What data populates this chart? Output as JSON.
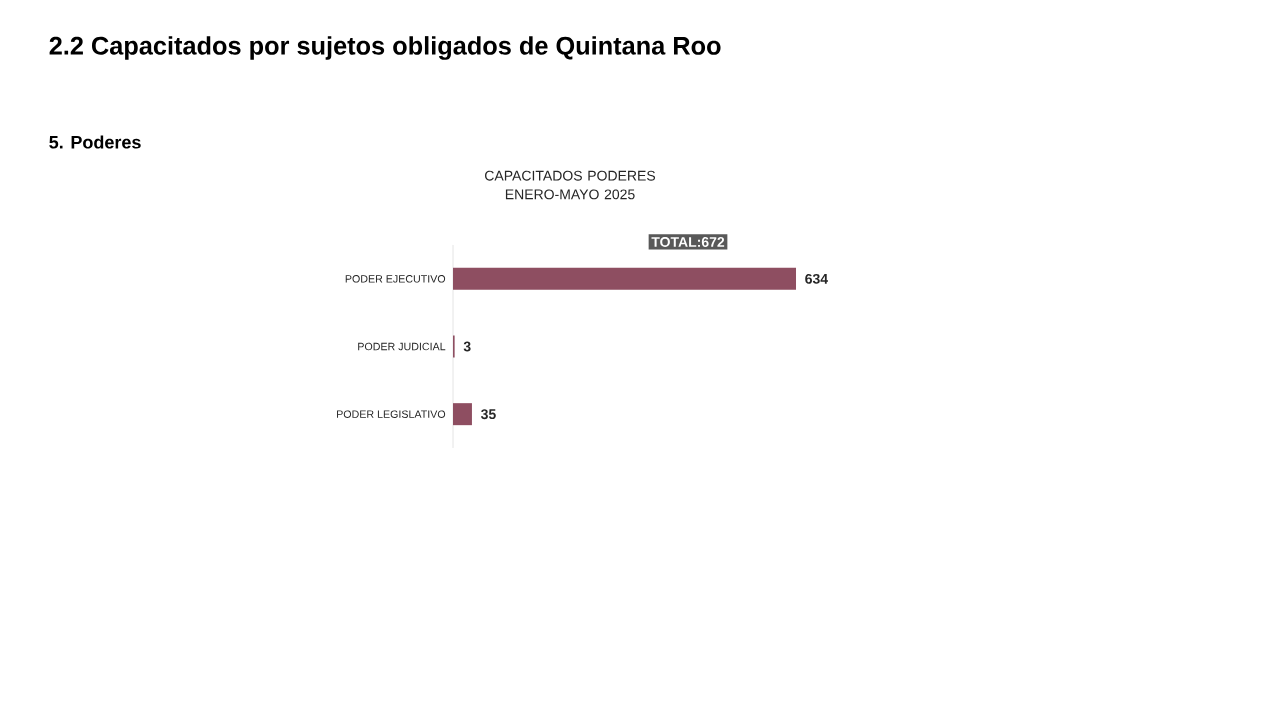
{
  "chart_data": {
    "type": "bar",
    "orientation": "horizontal",
    "title": "2.2 Capacitados por sujetos obligados de Quintana Roo",
    "subtitle": "5. Poderes",
    "categories": [
      "PODER EJECUTIVO",
      "PODER JUDICIAL",
      "PODER LEGISLATIVO"
    ],
    "values": [
      634,
      3,
      35
    ],
    "color": "#8e4e61",
    "data_labels": true,
    "annotations": [
      "CAPACITADOS PODERES ENERO-MAYO 2025",
      "TOTAL:672"
    ]
  }
}
